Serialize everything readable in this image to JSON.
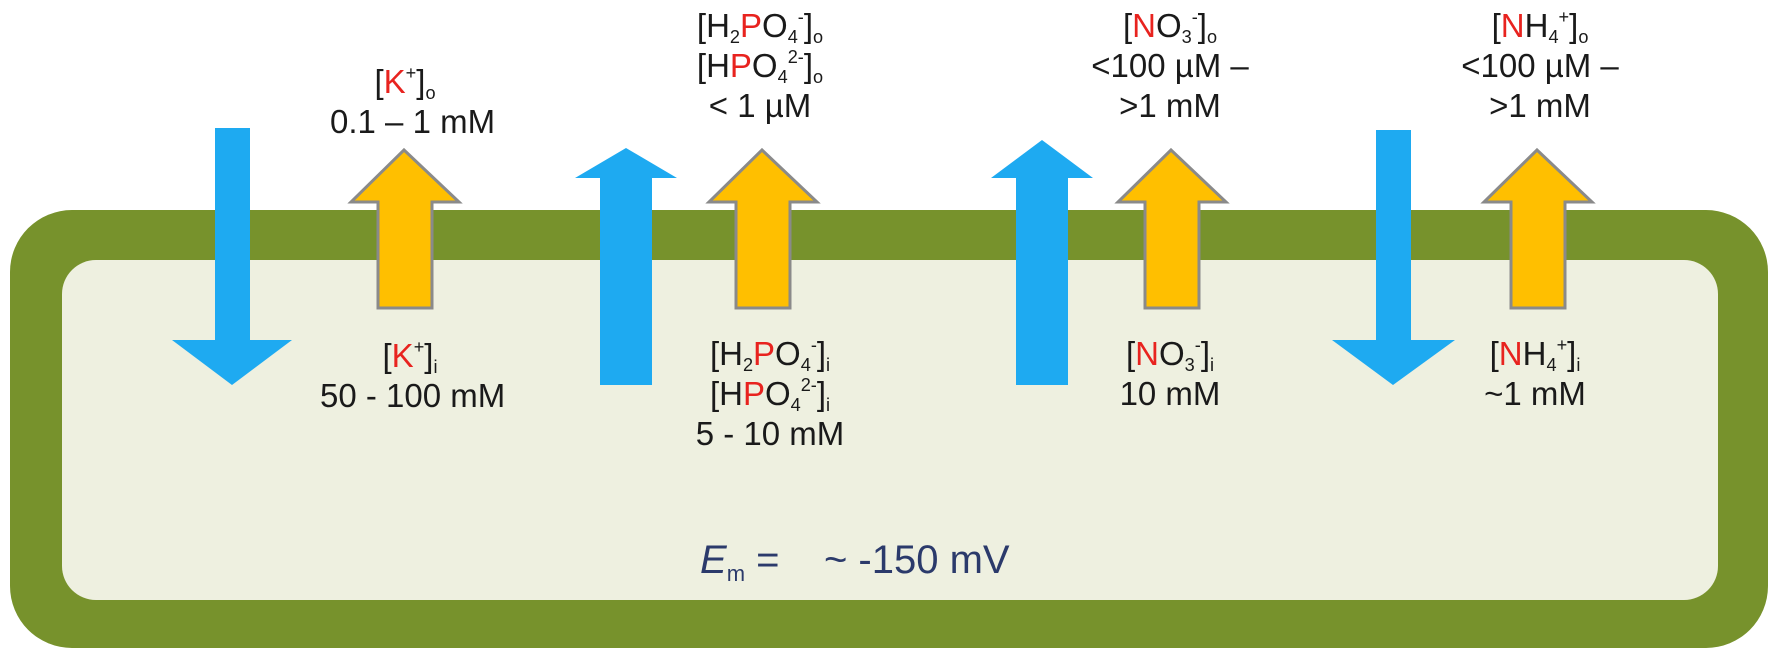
{
  "colors": {
    "membrane": "#77922c",
    "cytoplasm": "#eef0e0",
    "efflux_arrow": "#1eaaf1",
    "influx_arrow": "#ffbf00",
    "arrow_outline": "#8a8a8a",
    "element_highlight": "#e8231f",
    "potential_text": "#2b3a6b"
  },
  "ions": [
    {
      "id": "potassium",
      "outside": [
        "[K+]o",
        "0.1 – 1 mM"
      ],
      "inside": [
        "[K+]i",
        "50 - 100 mM"
      ],
      "blue_arrow": "down"
    },
    {
      "id": "phosphate",
      "outside": [
        "[H2PO4-]o",
        "[HPO42-]o",
        "< 1 µM"
      ],
      "inside": [
        "[H2PO4-]i",
        "[HPO42-]i",
        "5 - 10 mM"
      ],
      "blue_arrow": "up"
    },
    {
      "id": "nitrate",
      "outside": [
        "[NO3-]o",
        "<100 µM –",
        ">1 mM"
      ],
      "inside": [
        "[NO3-]i",
        "10 mM"
      ],
      "blue_arrow": "up"
    },
    {
      "id": "ammonium",
      "outside": [
        "[NH4+]o",
        "<100 µM –",
        ">1 mM"
      ],
      "inside": [
        "[NH4+]i",
        "~1 mM"
      ],
      "blue_arrow": "down"
    }
  ],
  "membrane_potential": {
    "symbol": "E",
    "subscript": "m",
    "equals": " = ",
    "value": "~ -150 mV"
  }
}
